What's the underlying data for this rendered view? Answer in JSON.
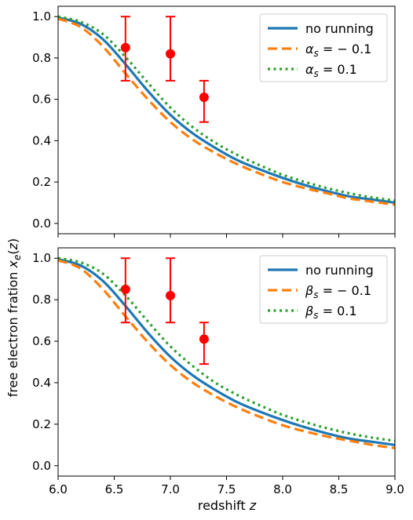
{
  "chart_data": [
    {
      "type": "line",
      "panel": "top",
      "xlim": [
        6.0,
        9.0
      ],
      "ylim": [
        -0.05,
        1.05
      ],
      "xticks": [
        "6.0",
        "6.5",
        "7.0",
        "7.5",
        "8.0",
        "8.5",
        "9.0"
      ],
      "xtick_values": [
        6.0,
        6.5,
        7.0,
        7.5,
        8.0,
        8.5,
        9.0
      ],
      "yticks": [
        "0.0",
        "0.2",
        "0.4",
        "0.6",
        "0.8",
        "1.0"
      ],
      "ytick_values": [
        0.0,
        0.2,
        0.4,
        0.6,
        0.8,
        1.0
      ],
      "show_xtick_labels": false,
      "grid": false,
      "legend_position": "top-right",
      "x": [
        6.0,
        6.2,
        6.4,
        6.6,
        6.8,
        7.0,
        7.2,
        7.4,
        7.6,
        7.8,
        8.0,
        8.2,
        8.4,
        8.6,
        8.8,
        9.0
      ],
      "series": [
        {
          "name": "no running",
          "label_main": "no running",
          "label_sub": "",
          "label_rhs": "",
          "color": "#1f77b4",
          "style": "solid",
          "values": [
            0.995,
            0.965,
            0.89,
            0.77,
            0.64,
            0.525,
            0.435,
            0.365,
            0.305,
            0.26,
            0.22,
            0.185,
            0.155,
            0.13,
            0.115,
            0.1
          ]
        },
        {
          "name": "α_s = −0.1",
          "label_main": "α",
          "label_sub": "s",
          "label_rhs": " = − 0.1",
          "color": "#ff7f0e",
          "style": "dashed",
          "values": [
            0.99,
            0.95,
            0.855,
            0.725,
            0.6,
            0.49,
            0.405,
            0.34,
            0.285,
            0.24,
            0.2,
            0.17,
            0.145,
            0.12,
            0.105,
            0.09
          ]
        },
        {
          "name": "α_s = 0.1",
          "label_main": "α",
          "label_sub": "s",
          "label_rhs": " = 0.1",
          "color": "#2ca02c",
          "style": "dotted",
          "values": [
            1.0,
            0.975,
            0.915,
            0.805,
            0.68,
            0.56,
            0.465,
            0.39,
            0.33,
            0.28,
            0.235,
            0.2,
            0.17,
            0.145,
            0.125,
            0.11
          ]
        }
      ],
      "points": {
        "color": "#ff0000",
        "x": [
          6.6,
          7.0,
          7.3
        ],
        "y": [
          0.85,
          0.82,
          0.61
        ],
        "yerr_low": [
          0.16,
          0.13,
          0.12
        ],
        "yerr_high": [
          0.15,
          0.18,
          0.08
        ]
      }
    },
    {
      "type": "line",
      "panel": "bottom",
      "xlim": [
        6.0,
        9.0
      ],
      "ylim": [
        -0.05,
        1.05
      ],
      "xticks": [
        "6.0",
        "6.5",
        "7.0",
        "7.5",
        "8.0",
        "8.5",
        "9.0"
      ],
      "xtick_values": [
        6.0,
        6.5,
        7.0,
        7.5,
        8.0,
        8.5,
        9.0
      ],
      "yticks": [
        "0.0",
        "0.2",
        "0.4",
        "0.6",
        "0.8",
        "1.0"
      ],
      "ytick_values": [
        0.0,
        0.2,
        0.4,
        0.6,
        0.8,
        1.0
      ],
      "show_xtick_labels": true,
      "grid": false,
      "legend_position": "top-right",
      "x": [
        6.0,
        6.2,
        6.4,
        6.6,
        6.8,
        7.0,
        7.2,
        7.4,
        7.6,
        7.8,
        8.0,
        8.2,
        8.4,
        8.6,
        8.8,
        9.0
      ],
      "series": [
        {
          "name": "no running",
          "label_main": "no running",
          "label_sub": "",
          "label_rhs": "",
          "color": "#1f77b4",
          "style": "solid",
          "values": [
            0.995,
            0.965,
            0.89,
            0.77,
            0.64,
            0.525,
            0.435,
            0.365,
            0.305,
            0.26,
            0.22,
            0.185,
            0.155,
            0.13,
            0.115,
            0.1
          ]
        },
        {
          "name": "β_s = −0.1",
          "label_main": "β",
          "label_sub": "s",
          "label_rhs": " = − 0.1",
          "color": "#ff7f0e",
          "style": "dashed",
          "values": [
            0.99,
            0.95,
            0.85,
            0.72,
            0.595,
            0.485,
            0.4,
            0.335,
            0.28,
            0.235,
            0.195,
            0.165,
            0.14,
            0.12,
            0.1,
            0.085
          ]
        },
        {
          "name": "β_s = 0.1",
          "label_main": "β",
          "label_sub": "s",
          "label_rhs": " = 0.1",
          "color": "#2ca02c",
          "style": "dotted",
          "values": [
            1.0,
            0.98,
            0.925,
            0.82,
            0.695,
            0.575,
            0.48,
            0.4,
            0.34,
            0.29,
            0.245,
            0.21,
            0.18,
            0.155,
            0.135,
            0.12
          ]
        }
      ],
      "points": {
        "color": "#ff0000",
        "x": [
          6.6,
          7.0,
          7.3
        ],
        "y": [
          0.85,
          0.82,
          0.61
        ],
        "yerr_low": [
          0.16,
          0.13,
          0.12
        ],
        "yerr_high": [
          0.15,
          0.18,
          0.08
        ]
      }
    }
  ],
  "labels": {
    "xlabel_text": "redshift ",
    "xlabel_var": "z",
    "ylabel_text": "free electron fration ",
    "ylabel_var_main": "x",
    "ylabel_var_sub": "e",
    "ylabel_paren_open": "(",
    "ylabel_paren_var": "z",
    "ylabel_paren_close": ")"
  }
}
